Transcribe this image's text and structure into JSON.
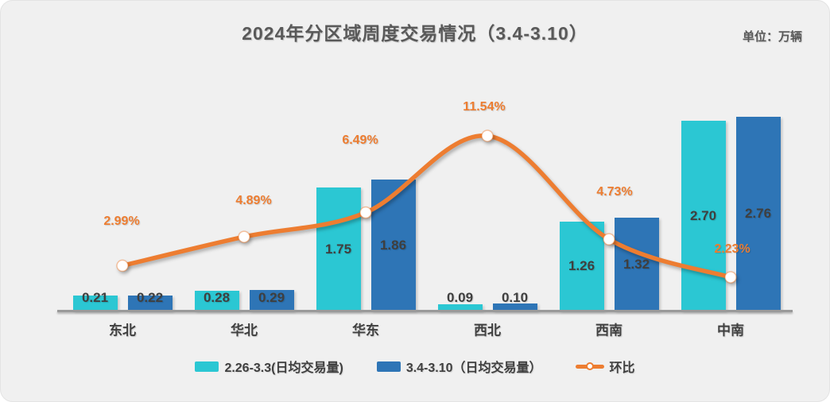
{
  "card": {
    "unit_label": "单位：万辆"
  },
  "chart_data": {
    "type": "bar",
    "subtype": "combo-bar-line",
    "title": "2024年分区域周度交易情况（3.4-3.10）",
    "unit": "万辆",
    "categories": [
      "东北",
      "华北",
      "华东",
      "西北",
      "西南",
      "中南"
    ],
    "series": [
      {
        "name": "2.26-3.3(日均交易量)",
        "type": "bar",
        "key": "prev-week",
        "color": "#2bc7d3",
        "values": [
          0.21,
          0.28,
          1.75,
          0.09,
          1.26,
          2.7
        ],
        "value_labels": [
          "0.21",
          "0.28",
          "1.75",
          "0.09",
          "1.26",
          "2.70"
        ],
        "axis": "left"
      },
      {
        "name": "3.4-3.10（日均交易量）",
        "type": "bar",
        "key": "curr-week",
        "color": "#2e75b6",
        "values": [
          0.22,
          0.29,
          1.86,
          0.1,
          1.32,
          2.76
        ],
        "value_labels": [
          "0.22",
          "0.29",
          "1.86",
          "0.10",
          "1.32",
          "2.76"
        ],
        "axis": "left"
      },
      {
        "name": "环比",
        "type": "line",
        "key": "wow-change",
        "color": "#ed7d31",
        "values": [
          2.99,
          4.89,
          6.49,
          11.54,
          4.73,
          2.23
        ],
        "value_labels": [
          "2.99%",
          "4.89%",
          "6.49%",
          "11.54%",
          "4.73%",
          "2.23%"
        ],
        "axis": "right"
      }
    ],
    "left_axis": {
      "visible": false,
      "min": 0
    },
    "right_axis": {
      "visible": false,
      "min": 0,
      "unit": "%"
    },
    "grid": false,
    "legend_position": "bottom"
  },
  "colors": {
    "background": "#f0f0f0",
    "bar_prev_week": "#2bc7d3",
    "bar_curr_week": "#2e75b6",
    "line": "#ed7d31",
    "title_text": "#595959",
    "value_label_text": "#3f3f3f",
    "pct_label_text": "#ed7d31",
    "axis_line": "#9a9a9a"
  }
}
